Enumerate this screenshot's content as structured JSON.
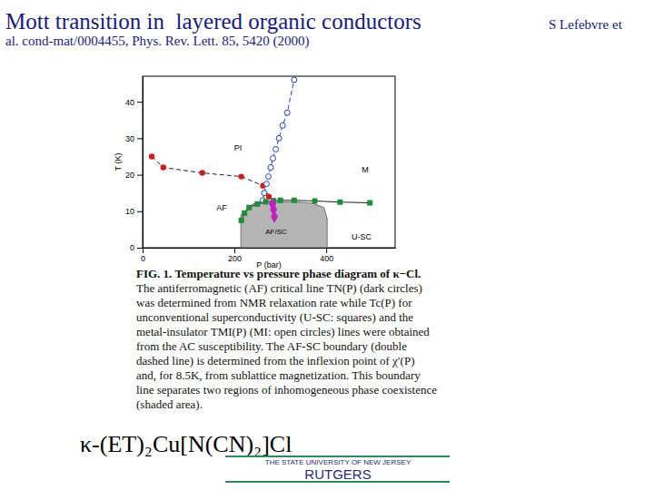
{
  "header": {
    "title": "Mott transition in  layered organic conductors",
    "author": "S Lefebvre et",
    "reference": "al. cond-mat/0004455, Phys. Rev. Lett. 85, 5420 (2000)"
  },
  "chart_data": {
    "type": "scatter",
    "x_label": "P (bar)",
    "y_label": "T (K)",
    "xlim": [
      0,
      550
    ],
    "ylim": [
      0,
      47
    ],
    "xticks": [
      0,
      200,
      400
    ],
    "yticks": [
      0,
      10,
      20,
      30,
      40
    ],
    "annotations": [
      "PI",
      "M",
      "AF",
      "U-SC",
      "AF/SC"
    ],
    "series": [
      {
        "type": "area",
        "color": "#b4b4b4",
        "x": [
          214,
          214,
          240,
          283,
          330,
          370,
          395,
          402,
          402
        ],
        "values": [
          0,
          9,
          12,
          12.5,
          12.6,
          12.2,
          11,
          8,
          0
        ]
      },
      {
        "type": "scatter",
        "color": "#cc2020",
        "marker": "circle",
        "line_style": "dashed",
        "x": [
          20,
          45,
          130,
          215,
          262,
          275
        ],
        "values": [
          25,
          22,
          20.5,
          19.5,
          17,
          14
        ]
      },
      {
        "type": "scatter",
        "color": "#2040b0",
        "marker": "open-circle",
        "line_style": "dashed",
        "x": [
          262,
          265,
          270,
          274,
          279,
          284,
          290,
          297,
          305,
          315,
          330
        ],
        "values": [
          13,
          15,
          17.5,
          19.5,
          22,
          24.5,
          27,
          30,
          33.5,
          37,
          46
        ]
      },
      {
        "type": "scatter",
        "color": "#1e8c3a",
        "marker": "square",
        "line_style": "solid",
        "x": [
          215,
          222,
          232,
          250,
          268,
          285,
          300,
          330,
          375,
          430,
          495
        ],
        "values": [
          7.5,
          9.5,
          11,
          12,
          12.6,
          12.9,
          13,
          13,
          12.8,
          12.5,
          12.3
        ]
      },
      {
        "type": "scatter",
        "color": "#c020c0",
        "marker": "diamond",
        "line_style": "dashed",
        "x": [
          283,
          285,
          287
        ],
        "values": [
          12,
          10.5,
          8.5
        ]
      }
    ]
  },
  "caption": [
    "FIG. 1.  Temperature vs pressure phase diagram of κ−Cl.",
    "The antiferromagnetic (AF) critical line TN(P) (dark circles)",
    "was determined from NMR relaxation rate while Tc(P) for",
    "unconventional superconductivity (U-SC: squares) and the",
    "metal-insulator TMI(P) (MI: open circles) lines were obtained",
    "from the AC susceptibility. The AF-SC boundary (double",
    "dashed line) is determined from the inflexion point of χ′(P)",
    "and, for 8.5K, from sublattice magnetization. This boundary",
    "line separates two regions of inhomogeneous phase coexistence",
    "(shaded area)."
  ],
  "formula": "κ-(ET)₂Cu[N(CN)₂]Cl",
  "footer": {
    "university": "THE STATE UNIVERSITY OF NEW JERSEY",
    "name": "RUTGERS"
  }
}
